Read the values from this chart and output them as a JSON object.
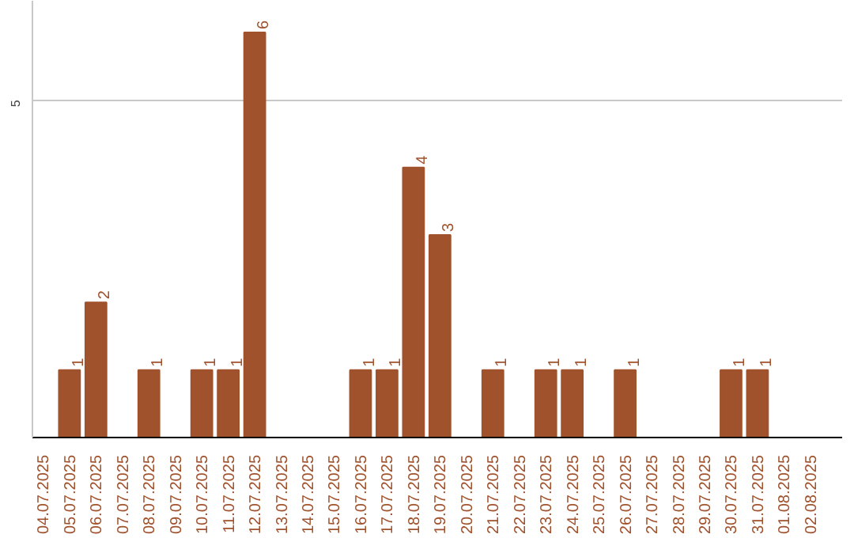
{
  "chart_data": {
    "type": "bar",
    "categories": [
      "04.07.2025",
      "05.07.2025",
      "06.07.2025",
      "07.07.2025",
      "08.07.2025",
      "09.07.2025",
      "10.07.2025",
      "11.07.2025",
      "12.07.2025",
      "13.07.2025",
      "14.07.2025",
      "15.07.2025",
      "16.07.2025",
      "17.07.2025",
      "18.07.2025",
      "19.07.2025",
      "20.07.2025",
      "21.07.2025",
      "22.07.2025",
      "23.07.2025",
      "24.07.2025",
      "25.07.2025",
      "26.07.2025",
      "27.07.2025",
      "28.07.2025",
      "29.07.2025",
      "30.07.2025",
      "31.07.2025",
      "01.08.2025",
      "02.08.2025"
    ],
    "values": [
      0,
      1,
      2,
      0,
      1,
      0,
      1,
      1,
      6,
      0,
      0,
      0,
      1,
      1,
      4,
      3,
      0,
      1,
      0,
      1,
      1,
      0,
      1,
      0,
      0,
      0,
      1,
      1,
      0,
      0
    ],
    "value_labels": [
      null,
      "1",
      "2",
      null,
      "1",
      null,
      "1",
      "1",
      "6",
      null,
      null,
      null,
      "1",
      "1",
      "4",
      "3",
      null,
      "1",
      null,
      "1",
      "1",
      null,
      "1",
      null,
      null,
      null,
      "1",
      "1",
      null,
      null
    ],
    "color": "#a0522d",
    "ylim": [
      0,
      6.47
    ],
    "yticks": [
      5
    ],
    "grid": "y"
  }
}
